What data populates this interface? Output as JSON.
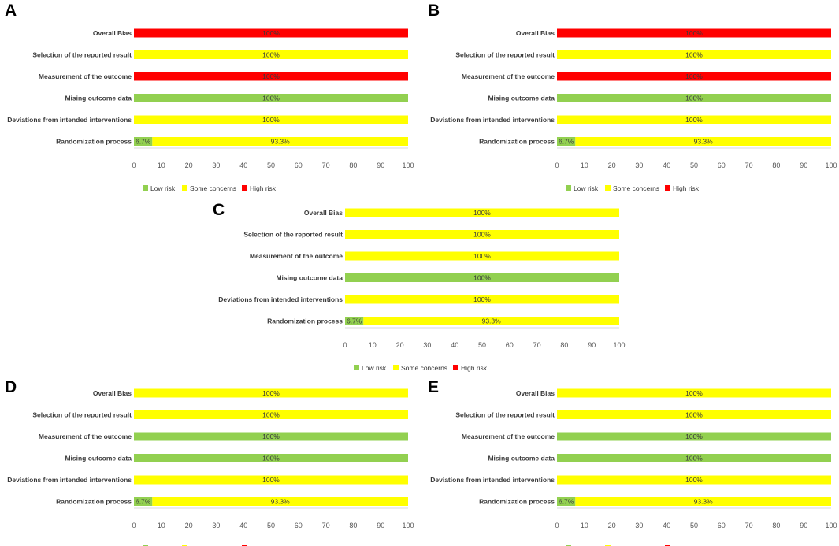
{
  "colors": {
    "low": "#92d050",
    "some": "#ffff00",
    "high": "#ff0000",
    "axis": "#d9d9d9"
  },
  "chart_data": [
    {
      "panel": "A",
      "type": "bar",
      "orientation": "horizontal",
      "stacked": true,
      "categories": [
        "Overall Bias",
        "Selection of the reported result",
        "Measurement of the outcome",
        "Mising outcome data",
        "Deviations from intended interventions",
        "Randomization process"
      ],
      "series": [
        {
          "name": "Low risk",
          "color_key": "low",
          "values": [
            0,
            0,
            0,
            100,
            0,
            6.7
          ],
          "labels": [
            "",
            "",
            "",
            "100%",
            "",
            "6.7%"
          ]
        },
        {
          "name": "Some concerns",
          "color_key": "some",
          "values": [
            0,
            100,
            0,
            0,
            100,
            93.3
          ],
          "labels": [
            "",
            "100%",
            "",
            "",
            "100%",
            "93.3%"
          ]
        },
        {
          "name": "High risk",
          "color_key": "high",
          "values": [
            100,
            0,
            100,
            0,
            0,
            0
          ],
          "labels": [
            "100%",
            "",
            "100%",
            "",
            "",
            ""
          ]
        }
      ],
      "xlim": [
        0,
        100
      ],
      "xticks": [
        0,
        10,
        20,
        30,
        40,
        50,
        60,
        70,
        80,
        90,
        100
      ],
      "legend": "bottom"
    },
    {
      "panel": "B",
      "type": "bar",
      "orientation": "horizontal",
      "stacked": true,
      "categories": [
        "Overall Bias",
        "Selection of the reported result",
        "Measurement of the outcome",
        "Mising outcome data",
        "Deviations from intended interventions",
        "Randomization process"
      ],
      "series": [
        {
          "name": "Low risk",
          "color_key": "low",
          "values": [
            0,
            0,
            0,
            100,
            0,
            6.7
          ],
          "labels": [
            "",
            "",
            "",
            "100%",
            "",
            "6.7%"
          ]
        },
        {
          "name": "Some concerns",
          "color_key": "some",
          "values": [
            0,
            100,
            0,
            0,
            100,
            93.3
          ],
          "labels": [
            "",
            "100%",
            "",
            "",
            "100%",
            "93.3%"
          ]
        },
        {
          "name": "High risk",
          "color_key": "high",
          "values": [
            100,
            0,
            100,
            0,
            0,
            0
          ],
          "labels": [
            "100%",
            "",
            "100%",
            "",
            "",
            ""
          ]
        }
      ],
      "xlim": [
        0,
        100
      ],
      "xticks": [
        0,
        10,
        20,
        30,
        40,
        50,
        60,
        70,
        80,
        90,
        100
      ],
      "legend": "bottom"
    },
    {
      "panel": "C",
      "type": "bar",
      "orientation": "horizontal",
      "stacked": true,
      "categories": [
        "Overall Bias",
        "Selection of the reported result",
        "Measurement of the outcome",
        "Mising outcome data",
        "Deviations from intended interventions",
        "Randomization process"
      ],
      "series": [
        {
          "name": "Low risk",
          "color_key": "low",
          "values": [
            0,
            0,
            0,
            100,
            0,
            6.7
          ],
          "labels": [
            "",
            "",
            "",
            "100%",
            "",
            "6.7%"
          ]
        },
        {
          "name": "Some concerns",
          "color_key": "some",
          "values": [
            100,
            100,
            100,
            0,
            100,
            93.3
          ],
          "labels": [
            "100%",
            "100%",
            "100%",
            "",
            "100%",
            "93.3%"
          ]
        },
        {
          "name": "High risk",
          "color_key": "high",
          "values": [
            0,
            0,
            0,
            0,
            0,
            0
          ],
          "labels": [
            "",
            "",
            "",
            "",
            "",
            ""
          ]
        }
      ],
      "xlim": [
        0,
        100
      ],
      "xticks": [
        0,
        10,
        20,
        30,
        40,
        50,
        60,
        70,
        80,
        90,
        100
      ],
      "legend": "bottom"
    },
    {
      "panel": "D",
      "type": "bar",
      "orientation": "horizontal",
      "stacked": true,
      "categories": [
        "Overall Bias",
        "Selection of the reported result",
        "Measurement of the outcome",
        "Mising outcome data",
        "Deviations from intended interventions",
        "Randomization process"
      ],
      "series": [
        {
          "name": "Low risk",
          "color_key": "low",
          "values": [
            0,
            0,
            100,
            100,
            0,
            6.7
          ],
          "labels": [
            "",
            "",
            "100%",
            "100%",
            "",
            "6.7%"
          ]
        },
        {
          "name": "Some concerns",
          "color_key": "some",
          "values": [
            100,
            100,
            0,
            0,
            100,
            93.3
          ],
          "labels": [
            "100%",
            "100%",
            "",
            "",
            "100%",
            "93.3%"
          ]
        },
        {
          "name": "High risk",
          "color_key": "high",
          "values": [
            0,
            0,
            0,
            0,
            0,
            0
          ],
          "labels": [
            "",
            "",
            "",
            "",
            "",
            ""
          ]
        }
      ],
      "xlim": [
        0,
        100
      ],
      "xticks": [
        0,
        10,
        20,
        30,
        40,
        50,
        60,
        70,
        80,
        90,
        100
      ],
      "legend": "bottom"
    },
    {
      "panel": "E",
      "type": "bar",
      "orientation": "horizontal",
      "stacked": true,
      "categories": [
        "Overall Bias",
        "Selection of the reported result",
        "Measurement of the outcome",
        "Mising outcome data",
        "Deviations from intended interventions",
        "Randomization process"
      ],
      "series": [
        {
          "name": "Low risk",
          "color_key": "low",
          "values": [
            0,
            0,
            100,
            100,
            0,
            6.7
          ],
          "labels": [
            "",
            "",
            "100%",
            "100%",
            "",
            "6.7%"
          ]
        },
        {
          "name": "Some concerns",
          "color_key": "some",
          "values": [
            100,
            100,
            0,
            0,
            100,
            93.3
          ],
          "labels": [
            "100%",
            "100%",
            "",
            "",
            "100%",
            "93.3%"
          ]
        },
        {
          "name": "High risk",
          "color_key": "high",
          "values": [
            0,
            0,
            0,
            0,
            0,
            0
          ],
          "labels": [
            "",
            "",
            "",
            "",
            "",
            ""
          ]
        }
      ],
      "xlim": [
        0,
        100
      ],
      "xticks": [
        0,
        10,
        20,
        30,
        40,
        50,
        60,
        70,
        80,
        90,
        100
      ],
      "legend": "bottom"
    }
  ]
}
